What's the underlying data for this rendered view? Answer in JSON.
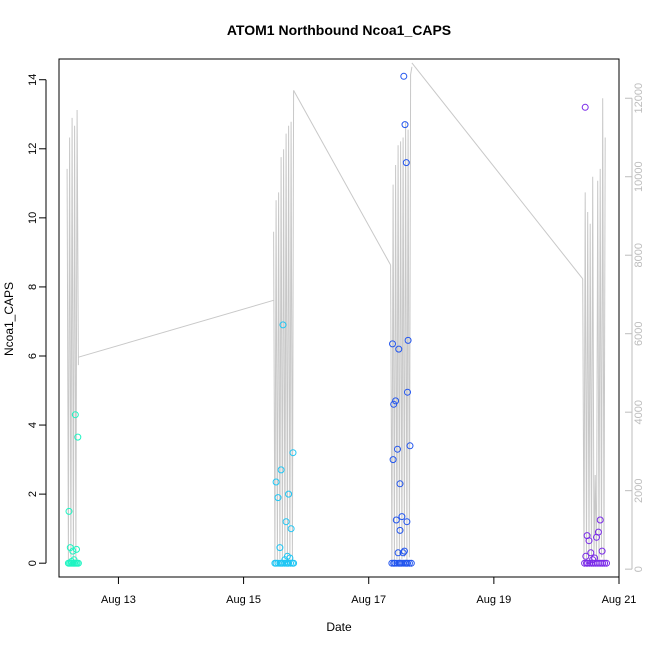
{
  "chart_data": {
    "type": "scatter",
    "title": "ATOM1 Northbound Ncoa1_CAPS",
    "xlabel": "Date",
    "ylabel": "Ncoa1_CAPS",
    "ylabel_right": "",
    "x_unit": "date (August, days)",
    "xlim": [
      12.05,
      21.0
    ],
    "ylim": [
      -0.4,
      14.6
    ],
    "y2lim": [
      -200,
      13000
    ],
    "x_ticks": [
      {
        "v": 13,
        "label": "Aug 13"
      },
      {
        "v": 15,
        "label": "Aug 15"
      },
      {
        "v": 17,
        "label": "Aug 17"
      },
      {
        "v": 19,
        "label": "Aug 19"
      },
      {
        "v": 21,
        "label": "Aug 21"
      }
    ],
    "y_ticks": [
      0,
      2,
      4,
      6,
      8,
      10,
      12,
      14
    ],
    "y2_ticks": [
      0,
      2000,
      4000,
      6000,
      8000,
      10000,
      12000
    ],
    "grid": false,
    "legend": "none",
    "colors": {
      "line": "#c8c8c8",
      "axis": "#000000",
      "right_axis": "#bdbdbd",
      "points": [
        "#1ff4c2",
        "#1fc6f4",
        "#2255ee",
        "#7a2ae8"
      ]
    },
    "line_series": {
      "segments": [
        {
          "x": [
            12.18,
            12.2,
            12.22,
            12.24,
            12.26,
            12.28,
            12.3,
            12.32,
            12.34,
            12.36
          ],
          "y": [
            10200,
            200,
            11000,
            300,
            11500,
            200,
            11300,
            200,
            11700,
            5200
          ]
        },
        {
          "x": [
            15.48,
            15.5,
            15.52,
            15.54,
            15.56,
            15.58,
            15.6,
            15.62,
            15.64,
            15.66,
            15.68,
            15.7,
            15.72,
            15.74,
            15.76,
            15.78,
            15.8
          ],
          "y": [
            8600,
            150,
            9400,
            200,
            9600,
            250,
            10500,
            200,
            10700,
            250,
            11100,
            300,
            11300,
            200,
            11400,
            200,
            12200
          ]
        },
        {
          "x": [
            17.35,
            17.37,
            17.39,
            17.41,
            17.43,
            17.45,
            17.47,
            17.49,
            17.51,
            17.53,
            17.55,
            17.57,
            17.59,
            17.61,
            17.63,
            17.65,
            17.67,
            17.69
          ],
          "y": [
            7750,
            150,
            9800,
            200,
            10300,
            250,
            10800,
            200,
            10900,
            250,
            11000,
            300,
            11400,
            200,
            11200,
            300,
            12600,
            12800
          ]
        },
        {
          "x": [
            20.42,
            20.44,
            20.46,
            20.48,
            20.5,
            20.52,
            20.54,
            20.56,
            20.58,
            20.6,
            20.62,
            20.64,
            20.66,
            20.68,
            20.7,
            20.72,
            20.74,
            20.76,
            20.78
          ],
          "y": [
            7400,
            150,
            9600,
            200,
            9100,
            250,
            8800,
            200,
            10000,
            300,
            2400,
            250,
            9900,
            200,
            10200,
            300,
            12000,
            200,
            11000
          ]
        }
      ],
      "connectors": [
        {
          "x": [
            12.36,
            15.48
          ],
          "y": [
            5400,
            6850
          ]
        },
        {
          "x": [
            15.8,
            17.35
          ],
          "y": [
            12200,
            7750
          ]
        },
        {
          "x": [
            17.69,
            20.42
          ],
          "y": [
            12900,
            7400
          ]
        }
      ]
    },
    "series": [
      {
        "color_index": 0,
        "x": [
          12.2,
          12.22,
          12.24,
          12.26,
          12.28,
          12.3,
          12.32,
          12.34,
          12.36,
          12.21,
          12.23,
          12.31,
          12.33,
          12.35,
          12.25,
          12.29,
          12.27
        ],
        "y": [
          0,
          0,
          0,
          0,
          0,
          0,
          0,
          0,
          0,
          1.5,
          0.45,
          4.3,
          0.4,
          3.65,
          0.05,
          0.1,
          0.35
        ]
      },
      {
        "color_index": 1,
        "x": [
          15.5,
          15.52,
          15.55,
          15.58,
          15.6,
          15.62,
          15.65,
          15.68,
          15.7,
          15.72,
          15.75,
          15.78,
          15.8,
          15.52,
          15.55,
          15.6,
          15.63,
          15.68,
          15.72,
          15.76,
          15.79,
          15.58,
          15.66,
          15.74,
          15.7
        ],
        "y": [
          0,
          0,
          0,
          0,
          0,
          0,
          0,
          0,
          0,
          0,
          0,
          0,
          0,
          2.35,
          1.9,
          2.7,
          6.9,
          1.2,
          2.0,
          1.0,
          3.2,
          0.45,
          0.1,
          0.15,
          0.2
        ]
      },
      {
        "color_index": 2,
        "x": [
          17.37,
          17.4,
          17.42,
          17.45,
          17.48,
          17.5,
          17.52,
          17.55,
          17.58,
          17.6,
          17.62,
          17.65,
          17.68,
          17.38,
          17.4,
          17.43,
          17.46,
          17.48,
          17.5,
          17.53,
          17.56,
          17.58,
          17.6,
          17.63,
          17.66,
          17.39,
          17.44,
          17.5,
          17.55,
          17.62,
          17.47,
          17.57,
          17.61
        ],
        "y": [
          0,
          0,
          0,
          0,
          0,
          0,
          0,
          0,
          0,
          0,
          0,
          0,
          0,
          6.35,
          4.6,
          4.7,
          3.3,
          6.2,
          2.3,
          1.35,
          14.1,
          12.7,
          11.6,
          6.45,
          3.4,
          3.0,
          1.25,
          0.95,
          0.3,
          4.95,
          0.3,
          0.35,
          1.2
        ]
      },
      {
        "color_index": 3,
        "x": [
          20.45,
          20.48,
          20.5,
          20.53,
          20.56,
          20.59,
          20.62,
          20.65,
          20.68,
          20.71,
          20.74,
          20.77,
          20.8,
          20.46,
          20.49,
          20.52,
          20.55,
          20.58,
          20.61,
          20.64,
          20.67,
          20.7,
          20.73,
          20.47
        ],
        "y": [
          0,
          0,
          0,
          0,
          0,
          0,
          0,
          0,
          0,
          0,
          0,
          0,
          0,
          13.2,
          0.8,
          0.65,
          0.3,
          0.1,
          0.15,
          0.75,
          0.9,
          1.25,
          0.35,
          0.2
        ]
      }
    ]
  }
}
